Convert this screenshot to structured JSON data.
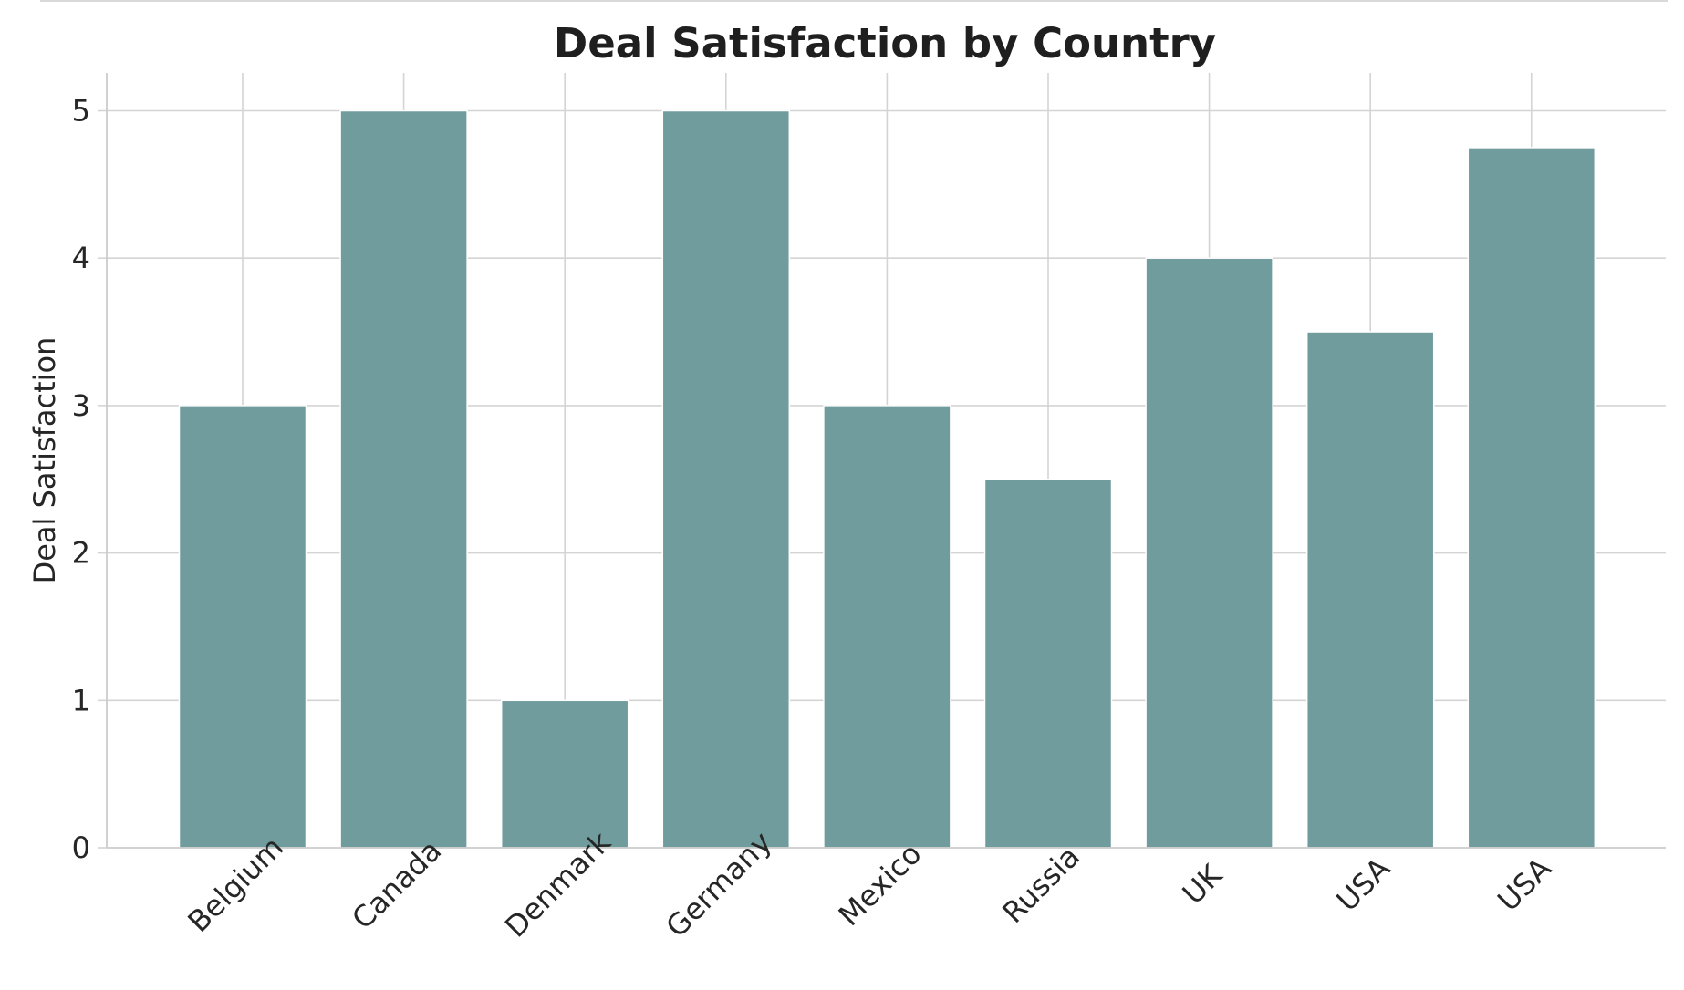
{
  "chart_data": {
    "type": "bar",
    "title": "Deal Satisfaction by Country",
    "xlabel": "",
    "ylabel": "Deal Satisfaction",
    "categories": [
      "Belgium",
      "Canada",
      "Denmark",
      "Germany",
      "Mexico",
      "Russia",
      "UK",
      "USA",
      "USA"
    ],
    "values": [
      3.0,
      5.0,
      1.0,
      5.0,
      3.0,
      2.5,
      4.0,
      3.5,
      4.75
    ],
    "ylim": [
      0,
      5.25
    ],
    "yticks": [
      0,
      1,
      2,
      3,
      4,
      5
    ],
    "grid": true,
    "legend": "none",
    "bar_color": "#709c9e",
    "grid_color": "#d4d4d4",
    "axis_color": "#cccccc"
  }
}
